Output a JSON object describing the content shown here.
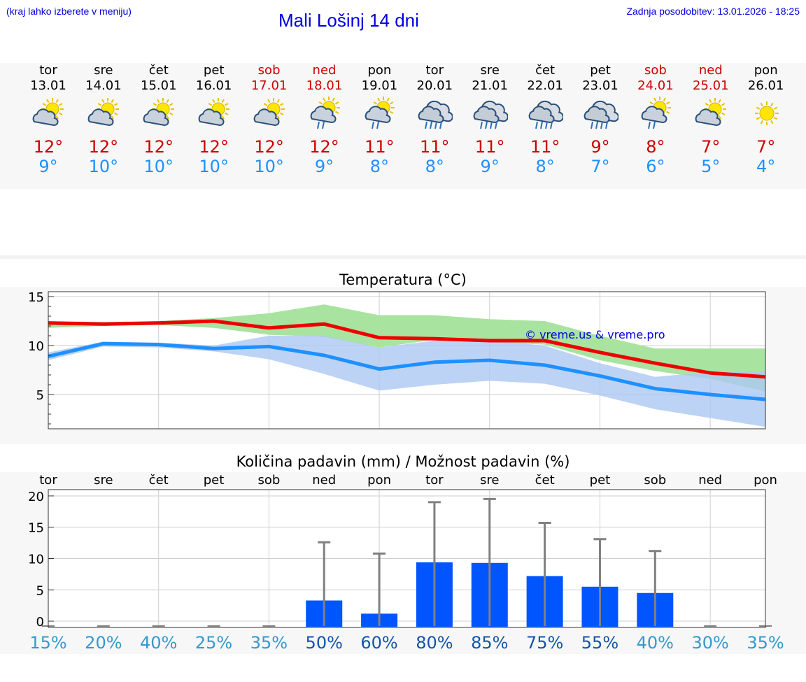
{
  "header": {
    "region_hint": "(kraj lahko izberete v meniju)",
    "title": "Mali Lošinj 14 dni",
    "updated": "Zadnja posodobitev: 13.01.2026 - 18:25"
  },
  "days": [
    {
      "name": "tor",
      "date": "13.01",
      "max": "12°",
      "min": "9°",
      "icon": "partly-cloudy-sun-icon",
      "weekend": false
    },
    {
      "name": "sre",
      "date": "14.01",
      "max": "12°",
      "min": "10°",
      "icon": "partly-cloudy-sun-icon",
      "weekend": false
    },
    {
      "name": "čet",
      "date": "15.01",
      "max": "12°",
      "min": "10°",
      "icon": "partly-cloudy-sun-icon",
      "weekend": false
    },
    {
      "name": "pet",
      "date": "16.01",
      "max": "12°",
      "min": "10°",
      "icon": "partly-cloudy-sun-icon",
      "weekend": false
    },
    {
      "name": "sob",
      "date": "17.01",
      "max": "12°",
      "min": "10°",
      "icon": "partly-cloudy-sun-icon",
      "weekend": true
    },
    {
      "name": "ned",
      "date": "18.01",
      "max": "12°",
      "min": "9°",
      "icon": "sun-cloud-rain-icon",
      "weekend": true
    },
    {
      "name": "pon",
      "date": "19.01",
      "max": "11°",
      "min": "8°",
      "icon": "sun-cloud-rain-icon",
      "weekend": false
    },
    {
      "name": "tor",
      "date": "20.01",
      "max": "11°",
      "min": "8°",
      "icon": "cloud-rain-icon",
      "weekend": false
    },
    {
      "name": "sre",
      "date": "21.01",
      "max": "11°",
      "min": "9°",
      "icon": "cloud-rain-icon",
      "weekend": false
    },
    {
      "name": "čet",
      "date": "22.01",
      "max": "11°",
      "min": "8°",
      "icon": "cloud-rain-icon",
      "weekend": false
    },
    {
      "name": "pet",
      "date": "23.01",
      "max": "9°",
      "min": "7°",
      "icon": "cloud-rain-icon",
      "weekend": false
    },
    {
      "name": "sob",
      "date": "24.01",
      "max": "8°",
      "min": "6°",
      "icon": "sun-cloud-rain-icon",
      "weekend": true
    },
    {
      "name": "ned",
      "date": "25.01",
      "max": "7°",
      "min": "5°",
      "icon": "partly-cloudy-sun-icon",
      "weekend": true
    },
    {
      "name": "pon",
      "date": "26.01",
      "max": "7°",
      "min": "4°",
      "icon": "sun-icon",
      "weekend": false
    }
  ],
  "colors": {
    "title_blue": "#0000dd",
    "max_red": "#cc0000",
    "min_blue": "#1e90ff",
    "max_line": "#ee0000",
    "min_line": "#1e90ff",
    "max_band": "#a8e4a0",
    "min_band": "#adc8f2",
    "bar": "#0055ff",
    "prob_low": "#3399cc",
    "prob_high": "#1155aa"
  },
  "chart_data": [
    {
      "type": "line",
      "title": "Temperatura (°C)",
      "watermark": "© vreme.us & vreme.pro",
      "ylim": [
        1.5,
        15.5
      ],
      "yticks": [
        5,
        10,
        15
      ],
      "x": [
        0,
        1,
        2,
        3,
        4,
        5,
        6,
        7,
        8,
        9,
        10,
        11,
        12,
        13
      ],
      "series": [
        {
          "name": "max",
          "values": [
            12.3,
            12.2,
            12.3,
            12.5,
            11.8,
            12.2,
            10.8,
            10.7,
            10.5,
            10.5,
            9.3,
            8.2,
            7.2,
            6.8
          ]
        },
        {
          "name": "min",
          "values": [
            8.9,
            10.2,
            10.1,
            9.7,
            9.9,
            9.0,
            7.6,
            8.3,
            8.5,
            8.0,
            6.9,
            5.6,
            5.0,
            4.5
          ]
        }
      ],
      "bands": [
        {
          "name": "max_range",
          "low": [
            11.8,
            12.0,
            12.1,
            11.8,
            11.1,
            10.9,
            9.8,
            10.6,
            10.3,
            10.1,
            8.5,
            7.4,
            6.6,
            5.3
          ],
          "high": [
            12.5,
            12.4,
            12.5,
            12.8,
            13.3,
            14.2,
            13.1,
            13.1,
            12.7,
            12.5,
            11.0,
            9.7,
            9.7,
            9.7
          ]
        },
        {
          "name": "min_range",
          "low": [
            8.5,
            9.9,
            9.8,
            9.4,
            8.6,
            7.1,
            5.4,
            6.0,
            6.4,
            6.1,
            4.9,
            3.5,
            2.6,
            1.7
          ],
          "high": [
            9.3,
            10.4,
            10.3,
            10.0,
            11.0,
            11.0,
            9.8,
            10.5,
            10.5,
            10.0,
            8.2,
            6.8,
            7.3,
            7.3
          ]
        }
      ]
    },
    {
      "type": "bar",
      "title": "Količina padavin (mm) / Možnost padavin (%)",
      "categories": [
        "tor",
        "sre",
        "čet",
        "pet",
        "sob",
        "ned",
        "pon",
        "tor",
        "sre",
        "čet",
        "pet",
        "sob",
        "ned",
        "pon"
      ],
      "ylim": [
        -1,
        21
      ],
      "yticks": [
        0,
        5,
        10,
        15,
        20
      ],
      "values": [
        0,
        0,
        0,
        0,
        0,
        3.3,
        1.2,
        9.4,
        9.3,
        7.2,
        5.5,
        4.5,
        0,
        0
      ],
      "error_max": [
        0,
        0,
        0,
        0,
        0,
        12.6,
        10.8,
        19.0,
        19.5,
        15.7,
        13.1,
        11.2,
        0,
        0
      ],
      "probability": [
        "15%",
        "20%",
        "40%",
        "25%",
        "35%",
        "50%",
        "60%",
        "80%",
        "85%",
        "75%",
        "55%",
        "40%",
        "30%",
        "35%"
      ],
      "probability_values": [
        15,
        20,
        40,
        25,
        35,
        50,
        60,
        80,
        85,
        75,
        55,
        40,
        30,
        35
      ]
    }
  ]
}
